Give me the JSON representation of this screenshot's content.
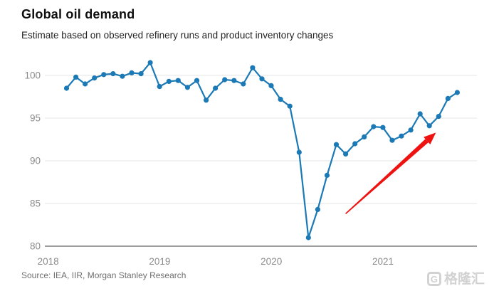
{
  "header": {
    "title": "Global oil demand",
    "subtitle": "Estimate based on observed refinery runs and product inventory changes"
  },
  "footer": {
    "source": "Source: IEA, IIR, Morgan Stanley Research"
  },
  "watermark": {
    "logo_letter": "G",
    "text": "格隆汇",
    "color": "#d2d2d2"
  },
  "chart_data": {
    "type": "line",
    "title": "Global oil demand",
    "subtitle": "Estimate based on observed refinery runs and product inventory changes",
    "xlabel": "",
    "ylabel": "",
    "ylim": [
      80,
      102
    ],
    "yticks": [
      100,
      95,
      90,
      85,
      80
    ],
    "xticks": [
      "2018",
      "2019",
      "2020",
      "2021"
    ],
    "grid": "horizontal",
    "legend": "none",
    "line_color": "#1b79b5",
    "marker": "circle",
    "x": [
      "2018-03",
      "2018-04",
      "2018-05",
      "2018-06",
      "2018-07",
      "2018-08",
      "2018-09",
      "2018-10",
      "2018-11",
      "2018-12",
      "2019-01",
      "2019-02",
      "2019-03",
      "2019-04",
      "2019-05",
      "2019-06",
      "2019-07",
      "2019-08",
      "2019-09",
      "2019-10",
      "2019-11",
      "2019-12",
      "2020-01",
      "2020-02",
      "2020-03",
      "2020-04",
      "2020-05",
      "2020-06",
      "2020-07",
      "2020-08",
      "2020-09",
      "2020-10",
      "2020-11",
      "2020-12",
      "2021-01",
      "2021-02",
      "2021-03",
      "2021-04",
      "2021-05",
      "2021-06",
      "2021-07",
      "2021-08",
      "2021-09"
    ],
    "values": [
      98.5,
      99.8,
      99.0,
      99.7,
      100.1,
      100.2,
      99.9,
      100.3,
      100.2,
      101.5,
      98.7,
      99.3,
      99.4,
      98.6,
      99.4,
      97.1,
      98.5,
      99.5,
      99.4,
      99.0,
      100.9,
      99.6,
      98.8,
      97.2,
      96.4,
      91.0,
      81.0,
      84.3,
      88.3,
      91.9,
      90.8,
      92.0,
      92.8,
      94.0,
      93.9,
      92.4,
      92.9,
      93.6,
      95.5,
      94.1,
      95.2,
      97.3,
      98.0
    ],
    "annotation": {
      "type": "arrow",
      "color": "#ee1311",
      "direction": "up-right",
      "from": {
        "month_index": 30.0,
        "value": 83.8
      },
      "to": {
        "month_index": 39.7,
        "value": 93.3
      }
    }
  }
}
